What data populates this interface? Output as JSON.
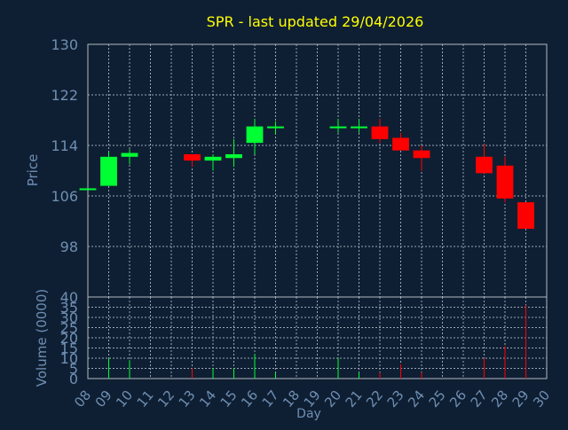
{
  "chart_data": {
    "type": "candlestick",
    "title": "SPR - last updated 29/04/2026",
    "xlabel": "Day",
    "days": [
      "08",
      "09",
      "10",
      "11",
      "12",
      "13",
      "14",
      "15",
      "16",
      "17",
      "18",
      "19",
      "20",
      "21",
      "22",
      "23",
      "24",
      "25",
      "26",
      "27",
      "28",
      "29",
      "30"
    ],
    "price_panel": {
      "ylabel": "Price",
      "ylim": [
        90,
        130
      ],
      "ticks": [
        "130",
        "122",
        "114",
        "106",
        "98"
      ],
      "candles": [
        {
          "day": "08",
          "open": 107.0,
          "close": 107.2,
          "high": 107.2,
          "low": 107.0
        },
        {
          "day": "09",
          "open": 107.6,
          "close": 112.2,
          "high": 113.0,
          "low": 107.6
        },
        {
          "day": "10",
          "open": 112.2,
          "close": 112.8,
          "high": 113.4,
          "low": 111.0
        },
        {
          "day": "13",
          "open": 112.6,
          "close": 111.6,
          "high": 112.6,
          "low": 110.6
        },
        {
          "day": "14",
          "open": 111.6,
          "close": 112.2,
          "high": 112.6,
          "low": 110.0
        },
        {
          "day": "15",
          "open": 112.0,
          "close": 112.6,
          "high": 115.0,
          "low": 110.6
        },
        {
          "day": "16",
          "open": 114.4,
          "close": 117.0,
          "high": 118.2,
          "low": 112.6
        },
        {
          "day": "17",
          "open": 116.8,
          "close": 117.0,
          "high": 117.8,
          "low": 115.8
        },
        {
          "day": "20",
          "open": 116.8,
          "close": 117.0,
          "high": 118.2,
          "low": 116.0
        },
        {
          "day": "21",
          "open": 116.8,
          "close": 117.0,
          "high": 118.2,
          "low": 116.0
        },
        {
          "day": "22",
          "open": 117.0,
          "close": 115.0,
          "high": 118.2,
          "low": 114.4
        },
        {
          "day": "23",
          "open": 115.2,
          "close": 113.2,
          "high": 116.0,
          "low": 113.2
        },
        {
          "day": "24",
          "open": 113.2,
          "close": 112.0,
          "high": 114.0,
          "low": 110.0
        },
        {
          "day": "27",
          "open": 112.2,
          "close": 109.6,
          "high": 114.2,
          "low": 109.6
        },
        {
          "day": "28",
          "open": 110.8,
          "close": 105.6,
          "high": 112.2,
          "low": 105.0
        },
        {
          "day": "29",
          "open": 105.0,
          "close": 100.8,
          "high": 105.0,
          "low": 100.8
        }
      ]
    },
    "volume_panel": {
      "ylabel": "Volume (0000)",
      "ylim": [
        0,
        40
      ],
      "ticks": [
        "40",
        "35",
        "30",
        "25",
        "20",
        "15",
        "10",
        "5",
        "0"
      ],
      "bars": [
        {
          "day": "09",
          "value": 10,
          "color": "green"
        },
        {
          "day": "10",
          "value": 9,
          "color": "green"
        },
        {
          "day": "13",
          "value": 5,
          "color": "red"
        },
        {
          "day": "14",
          "value": 5,
          "color": "green"
        },
        {
          "day": "15",
          "value": 5,
          "color": "green"
        },
        {
          "day": "16",
          "value": 12,
          "color": "green"
        },
        {
          "day": "17",
          "value": 3,
          "color": "green"
        },
        {
          "day": "20",
          "value": 10,
          "color": "green"
        },
        {
          "day": "21",
          "value": 3,
          "color": "green"
        },
        {
          "day": "22",
          "value": 3,
          "color": "red"
        },
        {
          "day": "23",
          "value": 7,
          "color": "red"
        },
        {
          "day": "24",
          "value": 3,
          "color": "red"
        },
        {
          "day": "27",
          "value": 10,
          "color": "red"
        },
        {
          "day": "28",
          "value": 16,
          "color": "red"
        },
        {
          "day": "29",
          "value": 36,
          "color": "red"
        }
      ]
    },
    "colors": {
      "background": "#0f1f33",
      "title": "#ffff00",
      "axis_text": "#6f8fb3",
      "up": "#00ff33",
      "down": "#ff0000",
      "grid": "#9aa6b4",
      "frame": "#b0b8c2"
    }
  }
}
